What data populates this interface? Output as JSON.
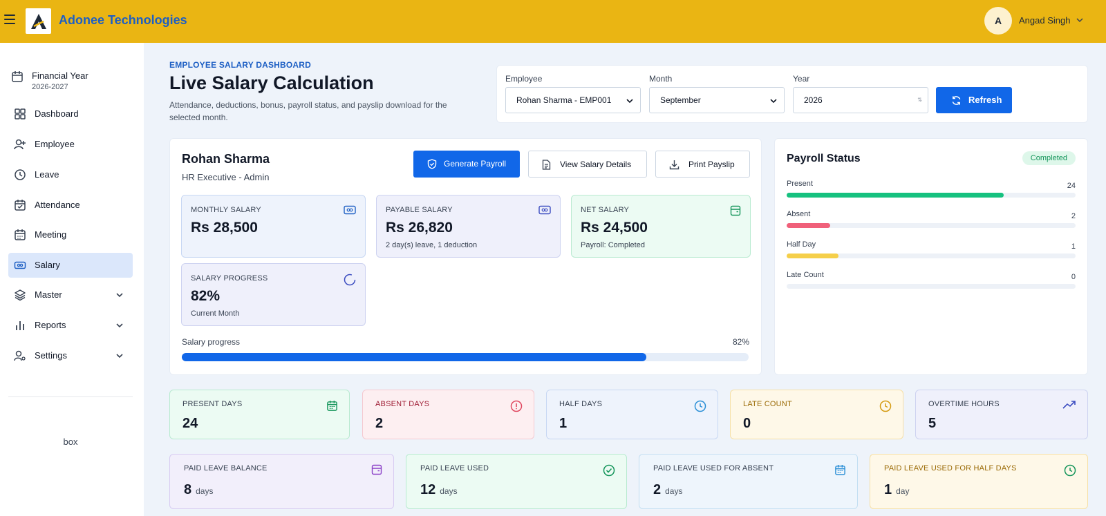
{
  "brand": {
    "name": "Adonee Technologies"
  },
  "user": {
    "initial": "A",
    "name": "Angad Singh"
  },
  "sidebar": {
    "financial_year": {
      "title": "Financial Year",
      "value": "2026-2027"
    },
    "items": [
      {
        "label": "Dashboard",
        "icon": "dashboard-icon"
      },
      {
        "label": "Employee",
        "icon": "user-plus-icon"
      },
      {
        "label": "Leave",
        "icon": "clock-icon"
      },
      {
        "label": "Attendance",
        "icon": "calendar-check-icon"
      },
      {
        "label": "Meeting",
        "icon": "calendar-icon"
      },
      {
        "label": "Salary",
        "icon": "money-icon",
        "active": true
      },
      {
        "label": "Master",
        "icon": "layers-icon",
        "expandable": true
      },
      {
        "label": "Reports",
        "icon": "bar-chart-icon",
        "expandable": true
      },
      {
        "label": "Settings",
        "icon": "user-settings-icon",
        "expandable": true
      }
    ],
    "footer_text": "box"
  },
  "header": {
    "eyebrow": "EMPLOYEE SALARY DASHBOARD",
    "title": "Live Salary Calculation",
    "description": "Attendance, deductions, bonus, payroll status, and payslip download for the selected month."
  },
  "filters": {
    "employee": {
      "label": "Employee",
      "value": "Rohan Sharma - EMP001"
    },
    "month": {
      "label": "Month",
      "value": "September"
    },
    "year": {
      "label": "Year",
      "value": "2026"
    },
    "refresh_label": "Refresh"
  },
  "employee": {
    "name": "Rohan Sharma",
    "role": "HR Executive - Admin",
    "actions": {
      "generate": "Generate Payroll",
      "view": "View Salary Details",
      "print": "Print Payslip"
    },
    "stats": {
      "monthly": {
        "label": "MONTHLY SALARY",
        "value": "Rs 28,500"
      },
      "payable": {
        "label": "PAYABLE SALARY",
        "value": "Rs 26,820",
        "sub": "2 day(s) leave, 1 deduction"
      },
      "net": {
        "label": "NET SALARY",
        "value": "Rs 24,500",
        "sub": "Payroll: Completed"
      },
      "progress": {
        "label": "SALARY PROGRESS",
        "value": "82%",
        "sub": "Current Month"
      }
    },
    "progress_bar": {
      "label": "Salary progress",
      "value_text": "82%",
      "percent": 82
    }
  },
  "payroll_status": {
    "title": "Payroll Status",
    "badge": "Completed",
    "rows": [
      {
        "label": "Present",
        "value": "24",
        "fraction": 0.75,
        "color": "#16c17f"
      },
      {
        "label": "Absent",
        "value": "2",
        "fraction": 0.15,
        "color": "#f0607a"
      },
      {
        "label": "Half Day",
        "value": "1",
        "fraction": 0.18,
        "color": "#f5cf4a"
      },
      {
        "label": "Late Count",
        "value": "0",
        "fraction": 0,
        "color": "#e5e7eb"
      }
    ]
  },
  "attendance": [
    {
      "label": "PRESENT DAYS",
      "value": "24",
      "icon": "calendar-icon"
    },
    {
      "label": "ABSENT DAYS",
      "value": "2",
      "icon": "alert-circle-icon"
    },
    {
      "label": "HALF DAYS",
      "value": "1",
      "icon": "clock-icon"
    },
    {
      "label": "LATE COUNT",
      "value": "0",
      "icon": "clock-icon"
    },
    {
      "label": "OVERTIME HOURS",
      "value": "5",
      "icon": "trending-up-icon"
    }
  ],
  "leave": [
    {
      "label": "PAID LEAVE BALANCE",
      "value": "8",
      "unit": "days",
      "icon": "wallet-icon"
    },
    {
      "label": "PAID LEAVE USED",
      "value": "12",
      "unit": "days",
      "icon": "check-circle-icon"
    },
    {
      "label": "PAID LEAVE USED FOR ABSENT",
      "value": "2",
      "unit": "days",
      "icon": "calendar-icon"
    },
    {
      "label": "PAID LEAVE USED FOR HALF DAYS",
      "value": "1",
      "unit": "day",
      "icon": "clock-icon"
    }
  ]
}
